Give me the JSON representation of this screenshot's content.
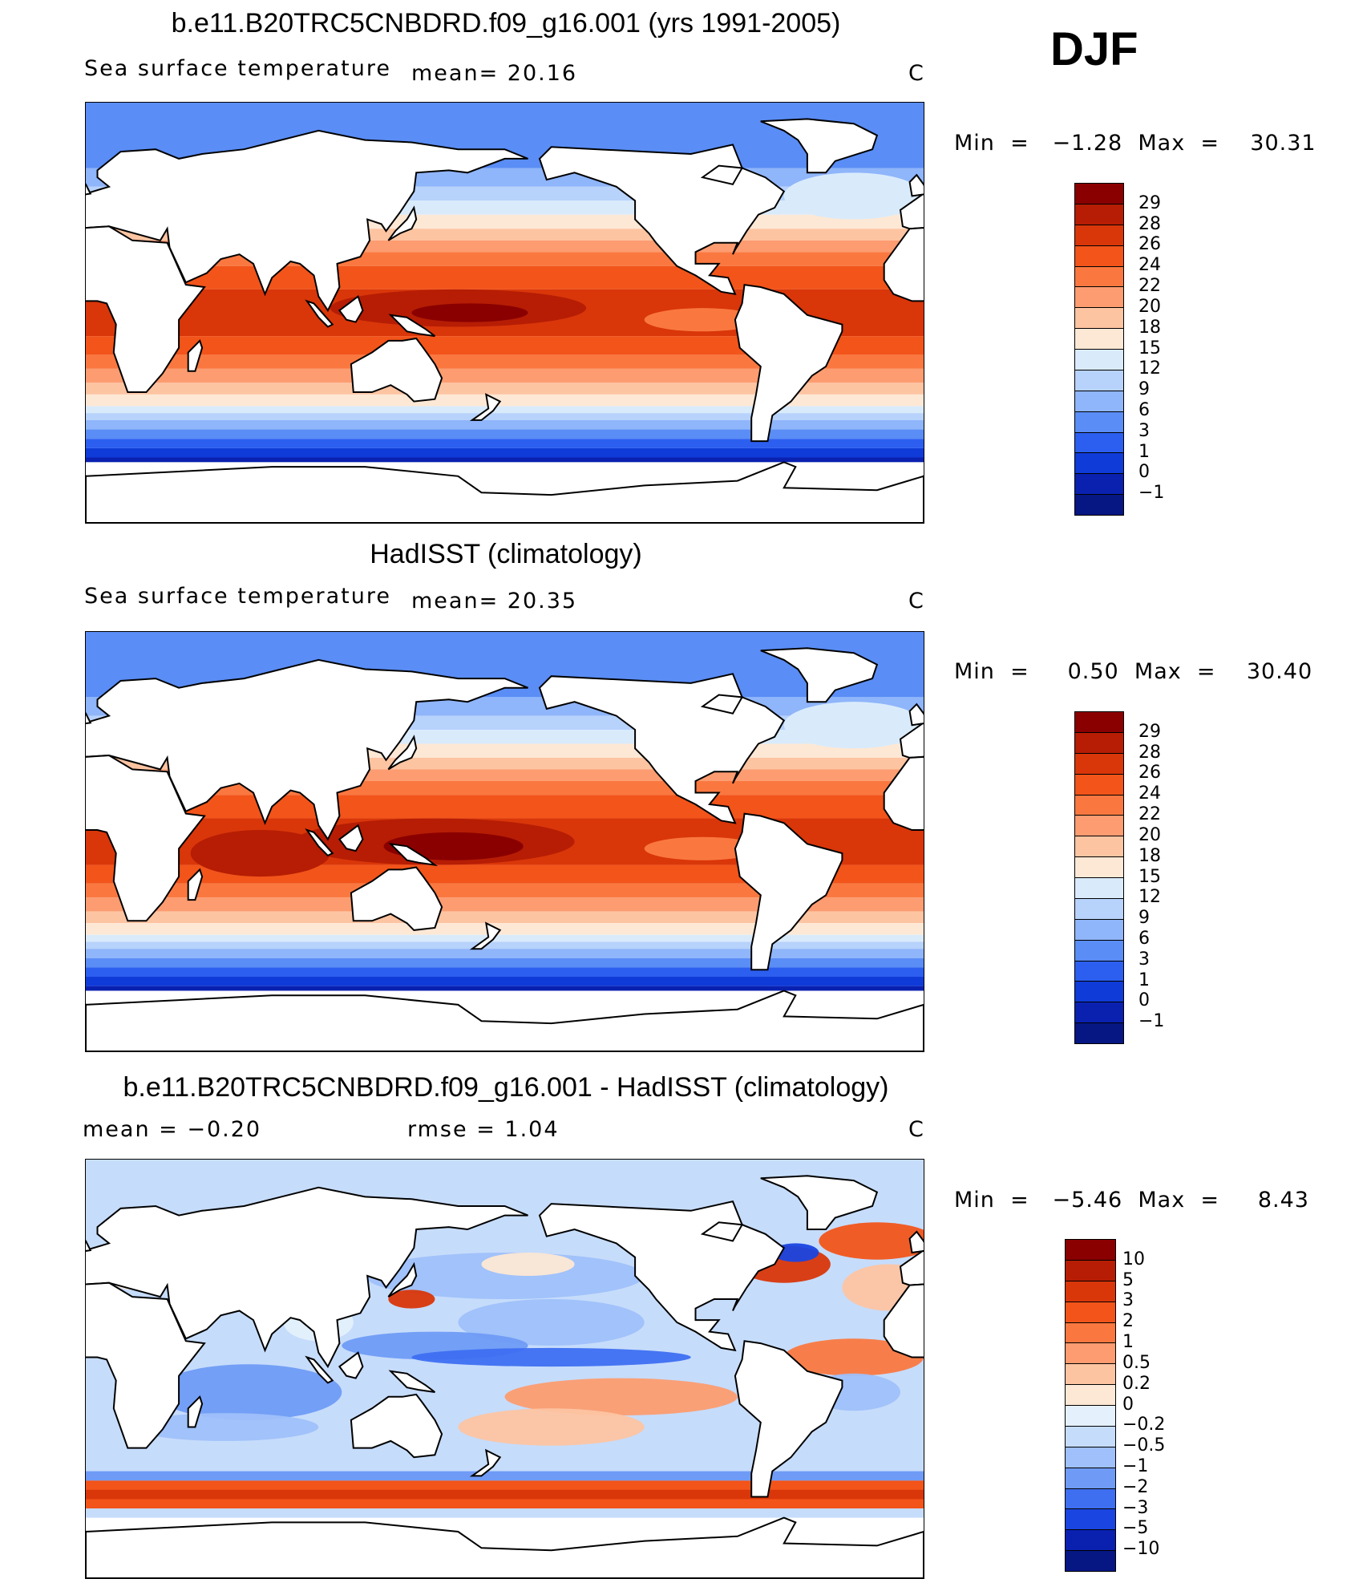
{
  "season": "DJF",
  "panels": [
    {
      "id": "model",
      "title": "b.e11.B20TRC5CNBDRD.f09_g16.001 (yrs 1991-2005)",
      "left_text": "Sea surface temperature",
      "mid_text": "mean=   20.16",
      "mid2_text": "",
      "units": "C",
      "minmax": "Min  =   −1.28  Max  =    30.31",
      "kind": "sst"
    },
    {
      "id": "obs",
      "title": "HadISST (climatology)",
      "left_text": "Sea surface temperature",
      "mid_text": "mean=   20.35",
      "mid2_text": "",
      "units": "C",
      "minmax": "Min  =     0.50  Max  =    30.40",
      "kind": "sst"
    },
    {
      "id": "diff",
      "title": "b.e11.B20TRC5CNBDRD.f09_g16.001 - HadISST (climatology)",
      "left_text": "mean  =   −0.20",
      "mid_text": "",
      "mid2_text": "rmse  =     1.04",
      "units": "C",
      "minmax": "Min  =   −5.46  Max  =     8.43",
      "kind": "diff"
    }
  ],
  "colorbars": {
    "sst": {
      "levels": [
        "29",
        "28",
        "26",
        "24",
        "22",
        "20",
        "18",
        "15",
        "12",
        "9",
        "6",
        "3",
        "1",
        "0",
        "−1"
      ],
      "colors": [
        "#8a0000",
        "#b61d04",
        "#d9360a",
        "#f2541a",
        "#fa7840",
        "#fc9c70",
        "#fdc4a2",
        "#fde8d5",
        "#d9ebfb",
        "#b7d2fb",
        "#8fb5fa",
        "#5a8df5",
        "#2c5ff0",
        "#0f3bd8",
        "#0a21b0",
        "#061682"
      ]
    },
    "diff": {
      "levels": [
        "10",
        "5",
        "3",
        "2",
        "1",
        "0.5",
        "0.2",
        "0",
        "−0.2",
        "−0.5",
        "−1",
        "−2",
        "−3",
        "−5",
        "−10"
      ],
      "colors": [
        "#8a0000",
        "#b61d04",
        "#d9360a",
        "#f2541a",
        "#fa7840",
        "#fc9c70",
        "#fdc4a2",
        "#fde8d5",
        "#e4f0fc",
        "#c6dcfb",
        "#9fc0fa",
        "#6f9bf6",
        "#3e6ff1",
        "#1a45e0",
        "#0a21b0",
        "#061682"
      ]
    }
  }
}
